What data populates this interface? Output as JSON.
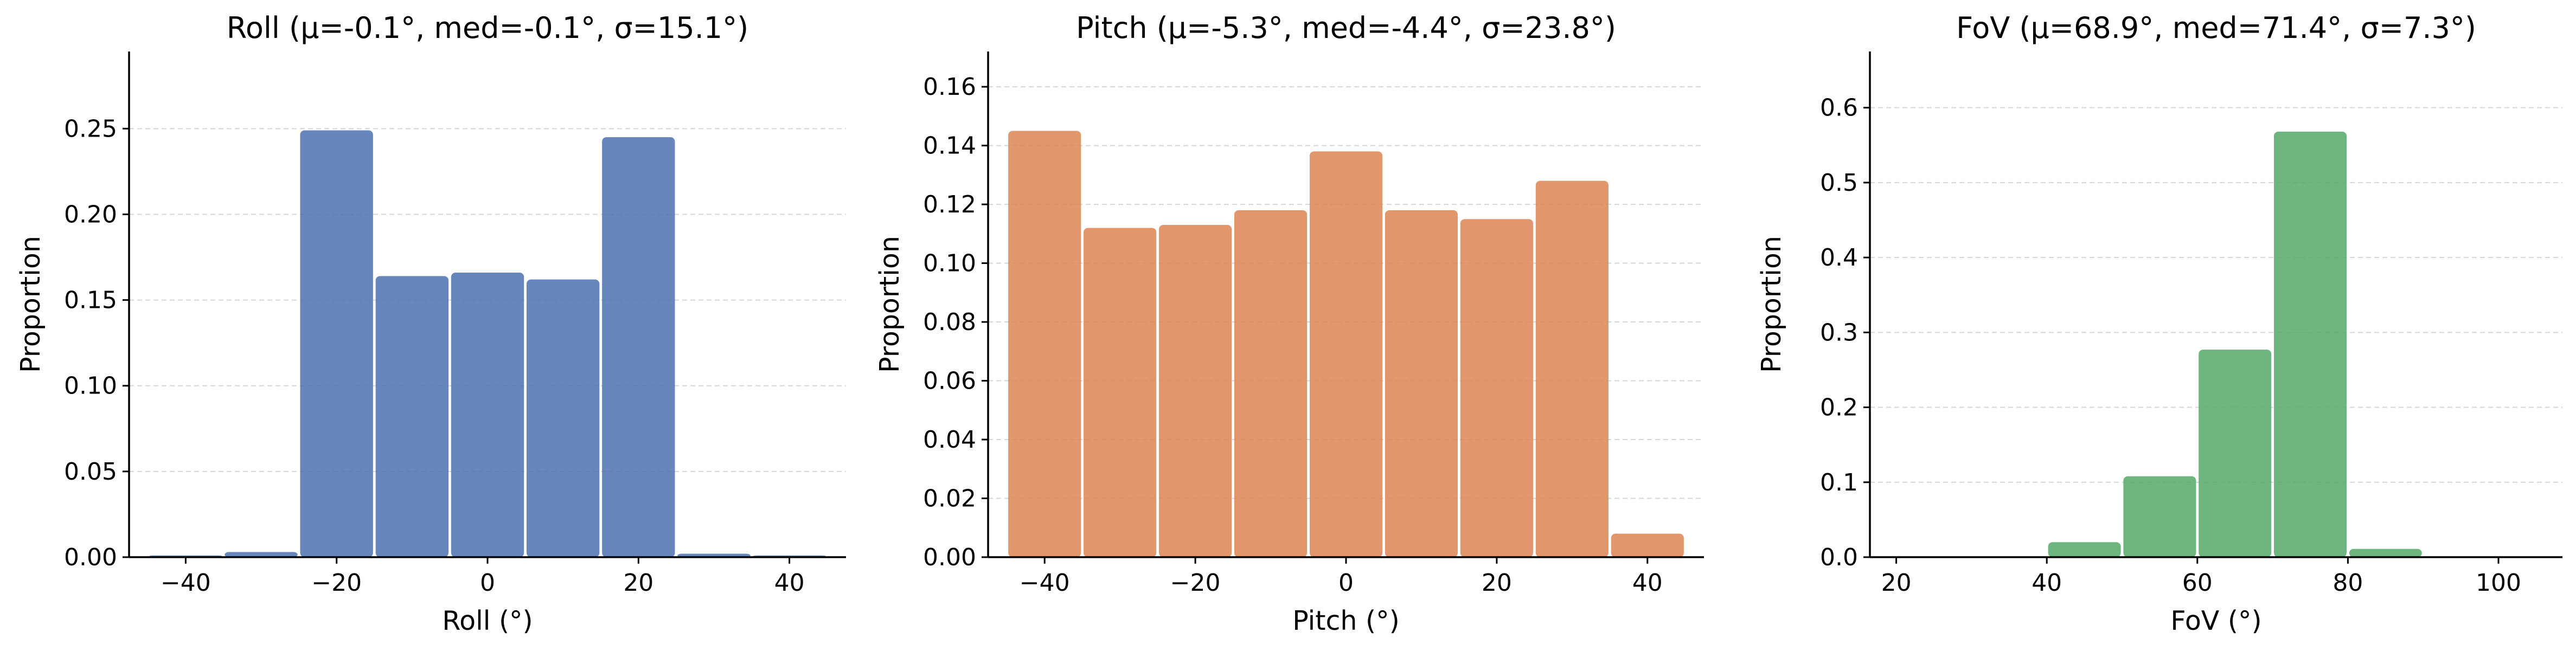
{
  "chart_data": [
    {
      "type": "bar",
      "title": "Roll  (μ=-0.1°, med=-0.1°, σ=15.1°)",
      "xlabel": "Roll (°)",
      "ylabel": "Proportion",
      "color": "#4c72b0",
      "xlim": [
        -47.5,
        47.5
      ],
      "ylim": [
        0,
        0.295
      ],
      "xticks": [
        -40,
        -20,
        0,
        20,
        40
      ],
      "xtick_labels": [
        "−40",
        "−20",
        "0",
        "20",
        "40"
      ],
      "yticks": [
        0,
        0.05,
        0.1,
        0.15,
        0.2,
        0.25
      ],
      "ytick_labels": [
        "0.00",
        "0.05",
        "0.10",
        "0.15",
        "0.20",
        "0.25"
      ],
      "bin_edges": [
        -45,
        -35,
        -25,
        -15,
        -5,
        5,
        15,
        25,
        35,
        45
      ],
      "values": [
        0.001,
        0.003,
        0.249,
        0.164,
        0.166,
        0.162,
        0.245,
        0.002,
        0.001
      ]
    },
    {
      "type": "bar",
      "title": "Pitch  (μ=-5.3°, med=-4.4°, σ=23.8°)",
      "xlabel": "Pitch (°)",
      "ylabel": "Proportion",
      "color": "#dd8452",
      "xlim": [
        -47.5,
        47.5
      ],
      "ylim": [
        0,
        0.172
      ],
      "xticks": [
        -40,
        -20,
        0,
        20,
        40
      ],
      "xtick_labels": [
        "−40",
        "−20",
        "0",
        "20",
        "40"
      ],
      "yticks": [
        0,
        0.02,
        0.04,
        0.06,
        0.08,
        0.1,
        0.12,
        0.14,
        0.16
      ],
      "ytick_labels": [
        "0.00",
        "0.02",
        "0.04",
        "0.06",
        "0.08",
        "0.10",
        "0.12",
        "0.14",
        "0.16"
      ],
      "bin_edges": [
        -45,
        -35,
        -25,
        -15,
        -5,
        5,
        15,
        25,
        35,
        45
      ],
      "values": [
        0.145,
        0.112,
        0.113,
        0.118,
        0.138,
        0.118,
        0.115,
        0.128,
        0.008
      ]
    },
    {
      "type": "bar",
      "title": "FoV  (μ=68.9°, med=71.4°, σ=7.3°)",
      "xlabel": "FoV (°)",
      "ylabel": "Proportion",
      "color": "#55a868",
      "xlim": [
        16.5,
        108.5
      ],
      "ylim": [
        0,
        0.675
      ],
      "xticks": [
        20,
        40,
        60,
        80,
        100
      ],
      "xtick_labels": [
        "20",
        "40",
        "60",
        "80",
        "100"
      ],
      "yticks": [
        0,
        0.1,
        0.2,
        0.3,
        0.4,
        0.5,
        0.6
      ],
      "ytick_labels": [
        "0.0",
        "0.1",
        "0.2",
        "0.3",
        "0.4",
        "0.5",
        "0.6"
      ],
      "bin_edges": [
        20,
        30,
        40,
        50,
        60,
        70,
        80,
        90,
        100,
        105
      ],
      "values": [
        0.001,
        0.001,
        0.02,
        0.108,
        0.277,
        0.568,
        0.011,
        0.001,
        0.001
      ]
    }
  ]
}
